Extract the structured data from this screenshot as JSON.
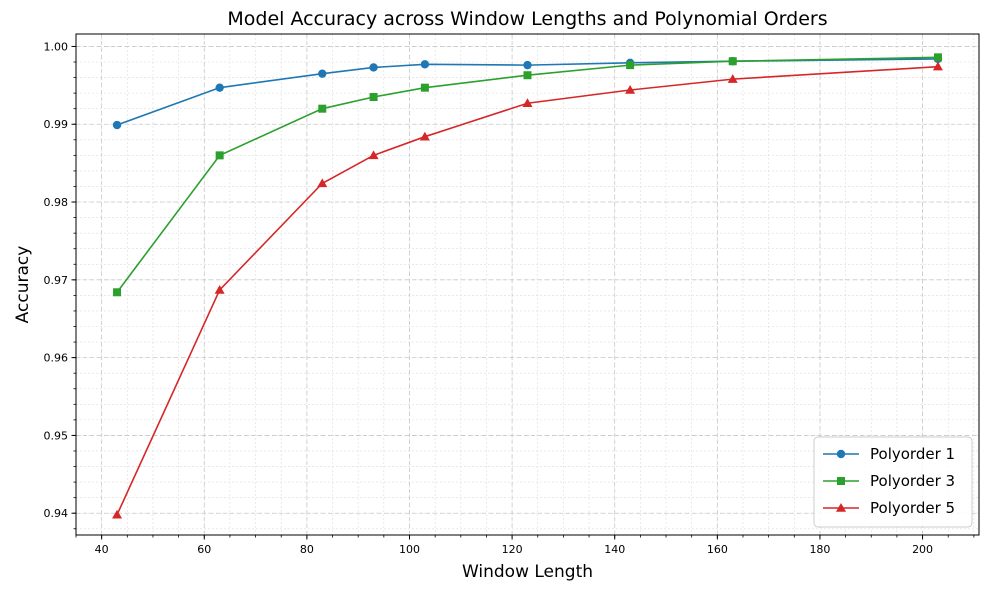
{
  "chart_data": {
    "type": "line",
    "title": "Model Accuracy across Window Lengths and Polynomial Orders",
    "xlabel": "Window Length",
    "ylabel": "Accuracy",
    "xlim": [
      35,
      211
    ],
    "ylim": [
      0.9372,
      1.0016
    ],
    "xticks": [
      40,
      60,
      80,
      100,
      120,
      140,
      160,
      180,
      200
    ],
    "yticks": [
      0.94,
      0.95,
      0.96,
      0.97,
      0.98,
      0.99,
      1.0
    ],
    "ytick_labels": [
      "0.94",
      "0.95",
      "0.96",
      "0.97",
      "0.98",
      "0.99",
      "1.00"
    ],
    "grid": true,
    "minor_grid": true,
    "legend_position": "lower-right",
    "x": [
      43,
      63,
      83,
      93,
      103,
      123,
      143,
      163,
      203
    ],
    "series": [
      {
        "name": "Polyorder 1",
        "color": "#1f77b4",
        "marker": "circle",
        "values": [
          0.9899,
          0.9947,
          0.9965,
          0.9973,
          0.9977,
          0.9976,
          0.9979,
          0.9981,
          0.9984
        ]
      },
      {
        "name": "Polyorder 3",
        "color": "#2ca02c",
        "marker": "square",
        "values": [
          0.9684,
          0.986,
          0.992,
          0.9935,
          0.9947,
          0.9963,
          0.9976,
          0.9981,
          0.9986
        ]
      },
      {
        "name": "Polyorder 5",
        "color": "#d62728",
        "marker": "triangle",
        "values": [
          0.9398,
          0.9687,
          0.9824,
          0.986,
          0.9884,
          0.9927,
          0.9944,
          0.9958,
          0.9974
        ]
      }
    ]
  }
}
